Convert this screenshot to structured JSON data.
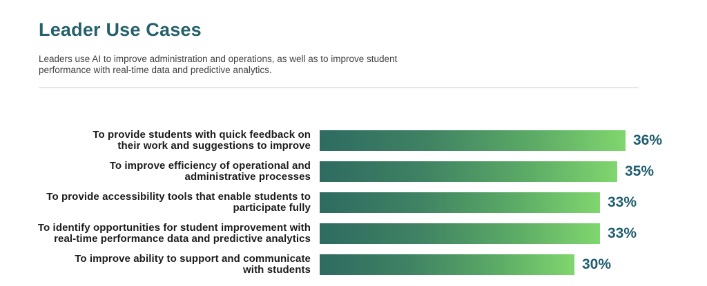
{
  "header": {
    "title": "Leader Use Cases",
    "subtitle_lines": [
      "Leaders use AI to improve administration and operations, as well as to improve student",
      "performance with real-time data and predictive analytics."
    ]
  },
  "chart_data": {
    "type": "bar",
    "orientation": "horizontal",
    "title": "Leader Use Cases",
    "xlim": [
      0,
      36
    ],
    "grid": false,
    "legend": false,
    "bar_color_start": "#2E6B61",
    "bar_color_end": "#80D66E",
    "value_label_color": "#1E5C6E",
    "categories": [
      "To provide students with quick feedback on their work and suggestions to improve",
      "To improve efficiency of operational and administrative processes",
      "To provide accessibility tools that enable students to participate fully",
      "To identify opportunities for student improvement with real-time performance data and predictive analytics",
      "To improve ability to support and communicate with students"
    ],
    "values": [
      36,
      35,
      33,
      33,
      30
    ],
    "bars": [
      {
        "label_lines": [
          "To provide students with quick feedback on",
          "their work and suggestions to improve"
        ],
        "value": 36,
        "display_value": "36%"
      },
      {
        "label_lines": [
          "To improve efficiency of operational and",
          "administrative processes"
        ],
        "value": 35,
        "display_value": "35%"
      },
      {
        "label_lines": [
          "To provide accessibility tools that enable students to",
          "participate fully"
        ],
        "value": 33,
        "display_value": "33%"
      },
      {
        "label_lines": [
          "To identify opportunities for student improvement with",
          "real-time performance data and predictive analytics"
        ],
        "value": 33,
        "display_value": "33%"
      },
      {
        "label_lines": [
          "To improve ability to support and communicate",
          "with students"
        ],
        "value": 30,
        "display_value": "30%"
      }
    ]
  }
}
